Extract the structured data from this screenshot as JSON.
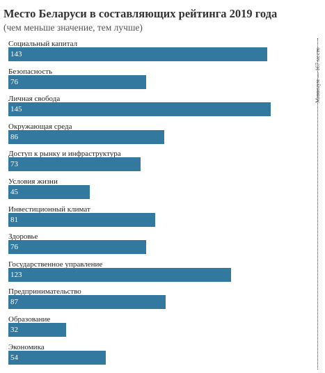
{
  "chart_data": {
    "type": "bar",
    "orientation": "horizontal",
    "title": "Место Беларуси в составляющих рейтинга 2019 года",
    "subtitle": "(чем меньше значение, тем лучше)",
    "categories": [
      "Социальный капитал",
      "Безопасность",
      "Личная свобода",
      "Окружающая среда",
      "Доступ к рынку и инфраструктура",
      "Условия жизни",
      "Инвестиционный климат",
      "Здоровье",
      "Государственное управление",
      "Предпринимательство",
      "Образование",
      "Экономика"
    ],
    "values": [
      143,
      76,
      145,
      86,
      73,
      45,
      81,
      76,
      123,
      87,
      32,
      54
    ],
    "xlim": [
      0,
      167
    ],
    "max_marker_label": "Минимум — 167 место",
    "bar_color": "#33789f",
    "grid": false,
    "legend": "none"
  }
}
